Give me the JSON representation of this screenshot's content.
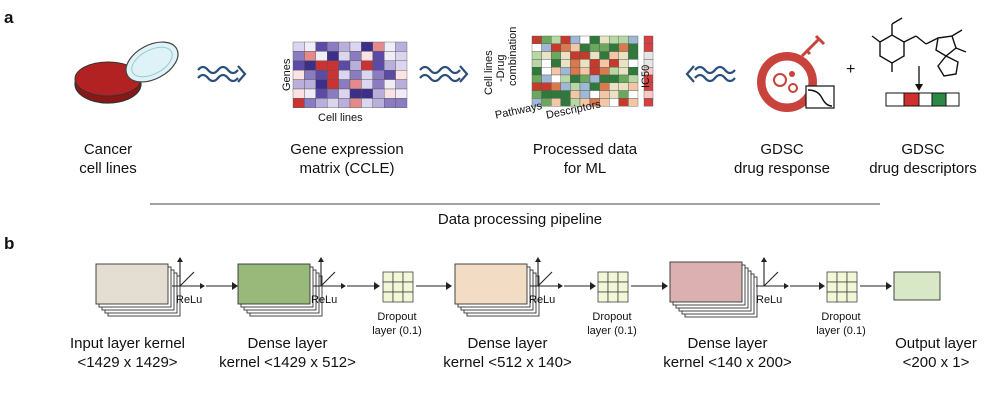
{
  "panel_a": {
    "letter": "a",
    "steps": [
      {
        "caption_line1": "Cancer",
        "caption_line2": "cell lines"
      },
      {
        "caption_line1": "Gene expression",
        "caption_line2": "matrix (CCLE)",
        "axis_y": "Genes",
        "axis_x": "Cell lines"
      },
      {
        "caption_line1": "Processed data",
        "caption_line2": "for ML",
        "axis_y1": "Cell lines",
        "axis_y2": "-Drug",
        "axis_y3": "combination",
        "axis_x1": "Pathways",
        "axis_x2": "Descriptors",
        "axis_right": "IC50"
      },
      {
        "caption_line1": "GDSC",
        "caption_line2": "drug response"
      },
      {
        "caption_line1": "GDSC",
        "caption_line2": "drug descriptors"
      }
    ],
    "plus": "+",
    "pipeline_label": "Data processing pipeline"
  },
  "panel_b": {
    "letter": "b",
    "relu": "ReLu",
    "layers": [
      {
        "line1": "Input layer kernel",
        "line2": "<1429 x 1429>",
        "color": "#e3ddd2"
      },
      {
        "line1": "Dense layer",
        "line2": "kernel <1429 x 512>",
        "color": "#98b97a"
      },
      {
        "line1": "Dense layer",
        "line2": "kernel <512 x 140>",
        "color": "#f3dcc4"
      },
      {
        "line1": "Dense layer",
        "line2": "kernel <140 x 200>",
        "color": "#dcb0b0"
      },
      {
        "line1": "Output layer",
        "line2": "<200 x 1>",
        "color": "#d8e7c6"
      }
    ],
    "dropout_line1": "Dropout",
    "dropout_line2": "layer (0.1)"
  }
}
